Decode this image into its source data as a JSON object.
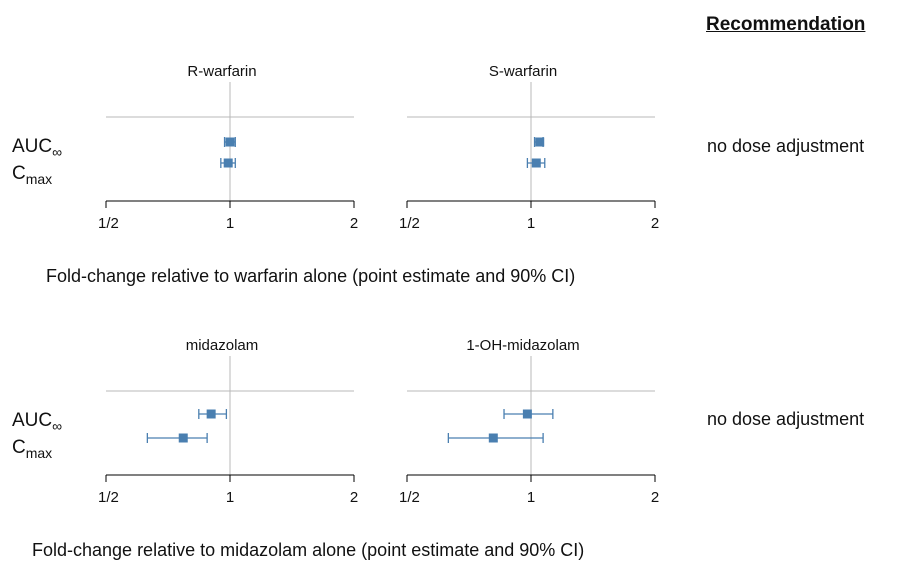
{
  "header": {
    "recommendation": "Recommendation"
  },
  "rows": {
    "auc_base": "AUC",
    "auc_sub": "∞",
    "cmax_base": "C",
    "cmax_sub": "max"
  },
  "sections": [
    {
      "caption": "Fold-change relative to warfarin alone (point estimate and 90% CI)",
      "recommendation": "no dose adjustment"
    },
    {
      "caption": "Fold-change relative to midazolam alone (point estimate and 90% CI)",
      "recommendation": "no dose adjustment"
    }
  ],
  "colors": {
    "marker": "#4a7fb0",
    "refline": "#b8b8b8",
    "axis": "#000000"
  },
  "chart_data": [
    {
      "type": "forest",
      "title": "R-warfarin",
      "xscale": "log2",
      "xlim": [
        0.5,
        2
      ],
      "xticks": [
        0.5,
        1,
        2
      ],
      "xticklabels": [
        "1/2",
        "1",
        "2"
      ],
      "reference": 1,
      "points": [
        {
          "metric": "AUC∞",
          "estimate": 1.0,
          "ci": [
            0.97,
            1.03
          ]
        },
        {
          "metric": "Cmax",
          "estimate": 0.99,
          "ci": [
            0.95,
            1.03
          ]
        }
      ]
    },
    {
      "type": "forest",
      "title": "S-warfarin",
      "xscale": "log2",
      "xlim": [
        0.5,
        2
      ],
      "xticks": [
        0.5,
        1,
        2
      ],
      "xticklabels": [
        "1/2",
        "1",
        "2"
      ],
      "reference": 1,
      "points": [
        {
          "metric": "AUC∞",
          "estimate": 1.05,
          "ci": [
            1.02,
            1.07
          ]
        },
        {
          "metric": "Cmax",
          "estimate": 1.03,
          "ci": [
            0.98,
            1.08
          ]
        }
      ]
    },
    {
      "type": "forest",
      "title": "midazolam",
      "xscale": "log2",
      "xlim": [
        0.5,
        2
      ],
      "xticks": [
        0.5,
        1,
        2
      ],
      "xticklabels": [
        "1/2",
        "1",
        "2"
      ],
      "reference": 1,
      "points": [
        {
          "metric": "AUC∞",
          "estimate": 0.9,
          "ci": [
            0.84,
            0.98
          ]
        },
        {
          "metric": "Cmax",
          "estimate": 0.77,
          "ci": [
            0.63,
            0.88
          ]
        }
      ]
    },
    {
      "type": "forest",
      "title": "1-OH-midazolam",
      "xscale": "log2",
      "xlim": [
        0.5,
        2
      ],
      "xticks": [
        0.5,
        1,
        2
      ],
      "xticklabels": [
        "1/2",
        "1",
        "2"
      ],
      "reference": 1,
      "points": [
        {
          "metric": "AUC∞",
          "estimate": 0.98,
          "ci": [
            0.86,
            1.13
          ]
        },
        {
          "metric": "Cmax",
          "estimate": 0.81,
          "ci": [
            0.63,
            1.07
          ]
        }
      ]
    }
  ]
}
